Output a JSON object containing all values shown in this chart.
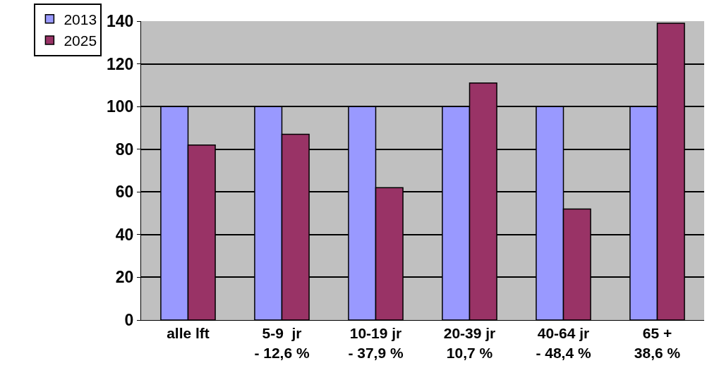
{
  "chart_data": {
    "type": "bar",
    "categories": [
      "alle lft",
      "5-9  jr\n- 12,6 %",
      "10-19 jr\n- 37,9 %",
      "20-39 jr\n10,7 %",
      "40-64 jr\n- 48,4 %",
      "65 +\n38,6 %"
    ],
    "series": [
      {
        "name": "2013",
        "color": "#9999ff",
        "values": [
          100,
          100,
          100,
          100,
          100,
          100
        ]
      },
      {
        "name": "2025",
        "color": "#993366",
        "values": [
          82,
          87,
          62,
          111,
          52,
          139
        ]
      }
    ],
    "ylim": [
      0,
      140
    ],
    "yticks": [
      0,
      20,
      40,
      60,
      80,
      100,
      120,
      140
    ],
    "grid": "y",
    "legend": "top left"
  }
}
